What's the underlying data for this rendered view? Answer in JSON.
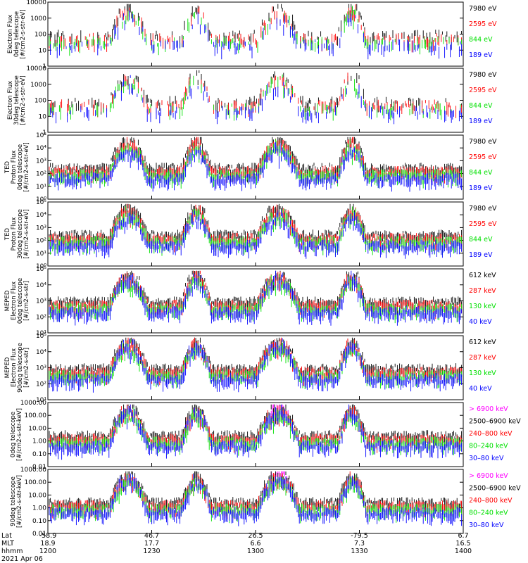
{
  "figure": {
    "date_label": "2021 Apr 06",
    "x_row_labels": [
      "Lat",
      "MLT",
      "hhmm"
    ]
  },
  "x_axis": {
    "lat": [
      "-58.9",
      "46.7",
      "26.5",
      "-79.5",
      "6.7"
    ],
    "mlt": [
      "18.9",
      "17.7",
      "6.6",
      "7.3",
      "16.5"
    ],
    "hhmm": [
      "1200",
      "1230",
      "1300",
      "1330",
      "1400"
    ]
  },
  "colors": {
    "black": "#000000",
    "red": "#ff0000",
    "green": "#00e000",
    "blue": "#0000ff",
    "magenta": "#ff00ff"
  },
  "chart_data": [
    {
      "type": "line",
      "scale": "log",
      "ylabel": [
        "Electron Flux",
        "0deg telescope",
        "[#/cm2-s-str-eV]"
      ],
      "ylim": [
        1,
        10000
      ],
      "ytick_labels": [
        "1",
        "10",
        "100",
        "1000",
        "10000"
      ],
      "series": [
        {
          "name": "7980 eV",
          "color": "black"
        },
        {
          "name": "2595 eV",
          "color": "red"
        },
        {
          "name": "844 eV",
          "color": "green"
        },
        {
          "name": "189 eV",
          "color": "blue"
        }
      ]
    },
    {
      "type": "line",
      "scale": "log",
      "ylabel": [
        "Electron Flux",
        "30deg telescope",
        "[#/cm2-s-str-eV]"
      ],
      "ylim": [
        1,
        10000
      ],
      "ytick_labels": [
        "1",
        "10",
        "100",
        "1000",
        "10000"
      ],
      "series": [
        {
          "name": "7980 eV",
          "color": "black"
        },
        {
          "name": "2595 eV",
          "color": "red"
        },
        {
          "name": "844 eV",
          "color": "green"
        },
        {
          "name": "189 eV",
          "color": "blue"
        }
      ]
    },
    {
      "type": "line",
      "scale": "log",
      "ylabel": [
        "TED",
        "Proton Flux",
        "0deg telescope",
        "[#/cm2-s-str-eV]"
      ],
      "ylim": [
        1,
        100000
      ],
      "ytick_labels": [
        "10⁰",
        "10¹",
        "10²",
        "10³",
        "10⁴",
        "10⁵"
      ],
      "series": [
        {
          "name": "7980 eV",
          "color": "black"
        },
        {
          "name": "2595 eV",
          "color": "red"
        },
        {
          "name": "844 eV",
          "color": "green"
        },
        {
          "name": "189 eV",
          "color": "blue"
        }
      ]
    },
    {
      "type": "line",
      "scale": "log",
      "ylabel": [
        "TED",
        "Proton Flux",
        "30deg telescope",
        "[#/cm2-s-str-eV]"
      ],
      "ylim": [
        1,
        100000
      ],
      "ytick_labels": [
        "10⁰",
        "10¹",
        "10²",
        "10³",
        "10⁴",
        "10⁵"
      ],
      "series": [
        {
          "name": "7980 eV",
          "color": "black"
        },
        {
          "name": "2595 eV",
          "color": "red"
        },
        {
          "name": "844 eV",
          "color": "green"
        },
        {
          "name": "189 eV",
          "color": "blue"
        }
      ]
    },
    {
      "type": "line",
      "scale": "log",
      "ylabel": [
        "MEPED",
        "Electron Flux",
        "0deg telescope",
        "[#/cm2-s-str]"
      ],
      "ylim": [
        10,
        100000
      ],
      "ytick_labels": [
        "10¹",
        "10²",
        "10³",
        "10⁴",
        "10⁵"
      ],
      "series": [
        {
          "name": "612 keV",
          "color": "black"
        },
        {
          "name": "287 keV",
          "color": "red"
        },
        {
          "name": "130 keV",
          "color": "green"
        },
        {
          "name": "40 keV",
          "color": "blue"
        }
      ]
    },
    {
      "type": "line",
      "scale": "log",
      "ylabel": [
        "MEPED",
        "Electron Flux",
        "90deg telescope",
        "[#/cm2-s-str]"
      ],
      "ylim": [
        10,
        100000
      ],
      "ytick_labels": [
        "10¹",
        "10²",
        "10³",
        "10⁴",
        "10⁵"
      ],
      "series": [
        {
          "name": "612 keV",
          "color": "black"
        },
        {
          "name": "287 keV",
          "color": "red"
        },
        {
          "name": "130 keV",
          "color": "green"
        },
        {
          "name": "40 keV",
          "color": "blue"
        }
      ]
    },
    {
      "type": "line",
      "scale": "log",
      "ylabel": [
        "0deg telescope",
        "[#/cm2-s-str-keV]"
      ],
      "ylim": [
        0.01,
        1000
      ],
      "ytick_labels": [
        "0.01",
        "0.10",
        "1.00",
        "10.00",
        "100.00",
        "1000.00"
      ],
      "series": [
        {
          "name": "> 6900 keV",
          "color": "magenta"
        },
        {
          "name": "2500–6900 keV",
          "color": "black"
        },
        {
          "name": "240–800 keV",
          "color": "red"
        },
        {
          "name": "80–240 keV",
          "color": "green"
        },
        {
          "name": "30–80 keV",
          "color": "blue"
        }
      ]
    },
    {
      "type": "line",
      "scale": "log",
      "ylabel": [
        "90deg telescope",
        "[#/cm2-s-str-keV]"
      ],
      "ylim": [
        0.01,
        1000
      ],
      "ytick_labels": [
        "0.01",
        "0.10",
        "1.00",
        "10.00",
        "100.00",
        "1000.00"
      ],
      "series": [
        {
          "name": "> 6900 keV",
          "color": "magenta"
        },
        {
          "name": "2500–6900 keV",
          "color": "black"
        },
        {
          "name": "240–800 keV",
          "color": "red"
        },
        {
          "name": "80–240 keV",
          "color": "green"
        },
        {
          "name": "30–80 keV",
          "color": "blue"
        }
      ]
    }
  ]
}
